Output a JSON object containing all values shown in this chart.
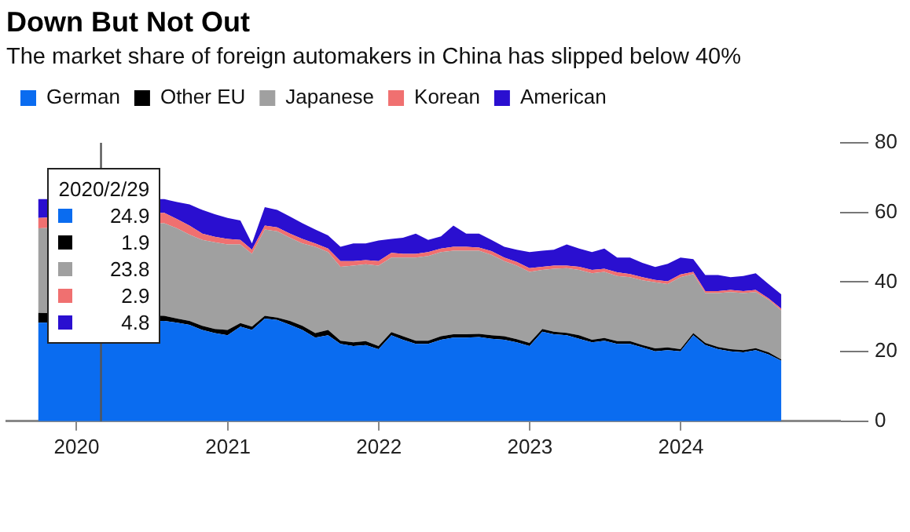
{
  "chart_data": {
    "type": "area",
    "stacked": true,
    "title": "Down But Not Out",
    "subtitle": "The market share of foreign automakers in China has slipped below 40%",
    "x": [
      "2019-09-30",
      "2019-10-31",
      "2019-11-30",
      "2019-12-31",
      "2020-01-31",
      "2020-02-29",
      "2020-03-31",
      "2020-04-30",
      "2020-05-31",
      "2020-06-30",
      "2020-07-31",
      "2020-08-31",
      "2020-09-30",
      "2020-10-31",
      "2020-11-30",
      "2020-12-31",
      "2021-01-31",
      "2021-02-28",
      "2021-03-31",
      "2021-04-30",
      "2021-05-31",
      "2021-06-30",
      "2021-07-31",
      "2021-08-31",
      "2021-09-30",
      "2021-10-31",
      "2021-11-30",
      "2021-12-31",
      "2022-01-31",
      "2022-02-28",
      "2022-03-31",
      "2022-04-30",
      "2022-05-31",
      "2022-06-30",
      "2022-07-31",
      "2022-08-31",
      "2022-09-30",
      "2022-10-31",
      "2022-11-30",
      "2022-12-31",
      "2023-01-31",
      "2023-02-28",
      "2023-03-31",
      "2023-04-30",
      "2023-05-31",
      "2023-06-30",
      "2023-07-31",
      "2023-08-31",
      "2023-09-30",
      "2023-10-31",
      "2023-11-30",
      "2023-12-31",
      "2024-01-31",
      "2024-02-29",
      "2024-03-31",
      "2024-04-30",
      "2024-05-31",
      "2024-06-30",
      "2024-07-31",
      "2024-08-31"
    ],
    "series": [
      {
        "name": "German",
        "color": "#0a6cf0",
        "values": [
          28.3,
          null,
          null,
          null,
          null,
          null,
          null,
          null,
          null,
          null,
          28.8,
          28.3,
          27.7,
          26.2,
          25.3,
          24.7,
          27.2,
          26.2,
          29.5,
          29.1,
          27.7,
          26.2,
          24.0,
          24.7,
          22.2,
          21.6,
          21.9,
          20.7,
          24.7,
          23.4,
          22.2,
          22.2,
          23.4,
          24.0,
          24.0,
          24.2,
          23.7,
          23.4,
          22.7,
          21.6,
          25.7,
          25.0,
          24.7,
          23.7,
          22.7,
          23.1,
          22.2,
          22.2,
          21.2,
          20.1,
          20.4,
          20.1,
          24.7,
          21.9,
          20.7,
          20.1,
          19.8,
          20.4,
          19.2,
          17.4
        ]
      },
      {
        "name": "Other EU",
        "color": "#000000",
        "values": [
          2.8,
          null,
          null,
          null,
          null,
          null,
          null,
          null,
          null,
          null,
          1.5,
          1.2,
          1.1,
          1.2,
          1.2,
          1.5,
          1.0,
          1.0,
          0.8,
          0.7,
          1.1,
          1.2,
          1.3,
          1.5,
          0.9,
          1.1,
          1.1,
          0.9,
          0.9,
          1.0,
          0.9,
          0.9,
          1.0,
          1.0,
          1.0,
          0.9,
          1.0,
          1.0,
          0.9,
          0.9,
          0.8,
          0.7,
          0.7,
          1.0,
          0.7,
          0.8,
          0.8,
          0.8,
          0.7,
          0.8,
          0.8,
          0.6,
          0.6,
          0.6,
          0.6,
          0.6,
          0.6,
          0.6,
          0.6,
          0.3
        ]
      },
      {
        "name": "Japanese",
        "color": "#a0a0a0",
        "values": [
          24.3,
          null,
          null,
          null,
          null,
          null,
          null,
          null,
          null,
          null,
          26.6,
          25.9,
          24.8,
          24.7,
          24.9,
          24.6,
          22.6,
          20.9,
          24.8,
          24.8,
          23.9,
          23.7,
          24.8,
          22.4,
          21.3,
          22.0,
          22.1,
          23.1,
          21.4,
          22.6,
          23.9,
          24.4,
          24.2,
          24.0,
          24.0,
          23.9,
          23.1,
          21.6,
          21.1,
          20.4,
          17.0,
          18.1,
          18.6,
          18.8,
          19.1,
          19.0,
          18.7,
          18.4,
          18.6,
          19.0,
          18.2,
          20.7,
          17.0,
          14.3,
          15.5,
          16.4,
          16.4,
          16.1,
          15.1,
          14.1
        ]
      },
      {
        "name": "Korean",
        "color": "#f07070",
        "values": [
          3.0,
          null,
          null,
          null,
          null,
          null,
          null,
          null,
          null,
          null,
          3.0,
          2.7,
          2.6,
          1.8,
          1.6,
          1.6,
          1.3,
          1.2,
          1.1,
          1.1,
          1.2,
          1.3,
          1.0,
          1.0,
          1.6,
          1.3,
          1.2,
          1.3,
          1.4,
          1.1,
          1.1,
          1.1,
          1.0,
          1.1,
          1.1,
          0.9,
          1.1,
          1.0,
          1.1,
          1.1,
          0.9,
          0.9,
          0.7,
          0.9,
          1.0,
          0.9,
          1.1,
          0.9,
          0.9,
          0.7,
          0.8,
          0.8,
          0.6,
          0.6,
          0.6,
          0.6,
          0.6,
          0.6,
          0.4,
          0.5
        ]
      },
      {
        "name": "American",
        "color": "#2a0fd0",
        "values": [
          5.4,
          null,
          null,
          null,
          null,
          null,
          null,
          null,
          null,
          null,
          3.9,
          4.9,
          6.1,
          6.8,
          6.5,
          6.0,
          5.6,
          1.8,
          5.3,
          5.0,
          4.9,
          4.5,
          4.0,
          3.8,
          4.1,
          5.1,
          4.8,
          5.9,
          4.0,
          4.6,
          5.8,
          3.5,
          3.5,
          6.1,
          3.8,
          4.0,
          3.2,
          3.1,
          3.5,
          4.6,
          4.6,
          4.6,
          6.1,
          5.2,
          5.1,
          5.8,
          4.2,
          4.7,
          4.1,
          3.7,
          5.0,
          4.8,
          3.7,
          4.6,
          4.6,
          3.7,
          4.3,
          4.8,
          4.1,
          4.1
        ]
      }
    ],
    "xlim": [
      "2019-07-15",
      "2025-01-20"
    ],
    "xticks": [
      "2020",
      "2021",
      "2022",
      "2023",
      "2024"
    ],
    "ylim": [
      0,
      80
    ],
    "yticks": [
      0,
      20,
      40,
      60,
      80
    ],
    "grid": false,
    "legend": "top left",
    "ref_lines": [
      {
        "axis": "x",
        "value": "2020-02-29",
        "color": "#555555"
      }
    ],
    "annotations": [
      "2020/2/29",
      "24.9",
      "1.9",
      "23.8",
      "2.9",
      "4.8"
    ]
  }
}
